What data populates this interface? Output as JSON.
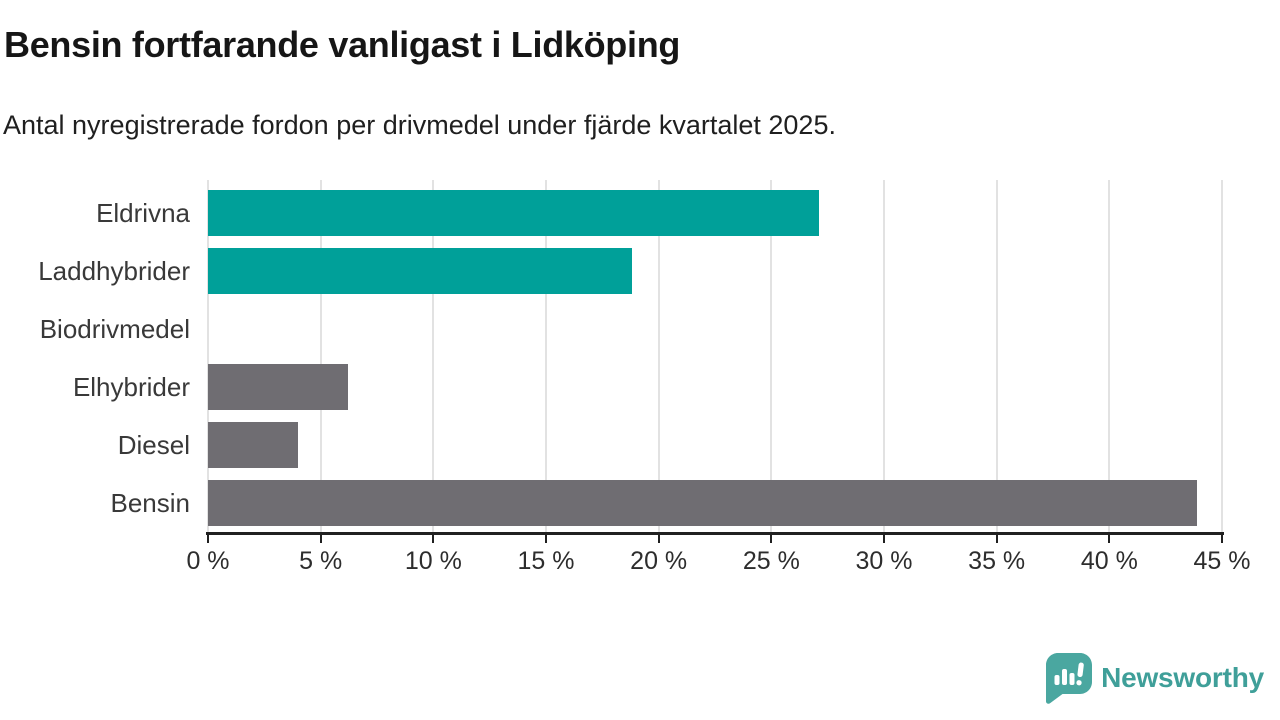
{
  "header": {
    "title": "Bensin fortfarande vanligast i Lidköping",
    "subtitle": "Antal nyregistrerade fordon per drivmedel under fjärde kvartalet 2025."
  },
  "chart_data": {
    "type": "bar",
    "orientation": "horizontal",
    "title": "Bensin fortfarande vanligast i Lidköping",
    "subtitle": "Antal nyregistrerade fordon per drivmedel under fjärde kvartalet 2025.",
    "categories": [
      "Eldrivna",
      "Laddhybrider",
      "Biodrivmedel",
      "Elhybrider",
      "Diesel",
      "Bensin"
    ],
    "values": [
      27.1,
      18.8,
      0,
      6.2,
      4,
      43.9
    ],
    "bar_colors": [
      "#00a099",
      "#00a099",
      "#6f6d72",
      "#6f6d72",
      "#6f6d72",
      "#6f6d72"
    ],
    "accent_teal": "#00a099",
    "bar_gray": "#6f6d72",
    "xlabel": "",
    "ylabel": "",
    "xlim": [
      0,
      45
    ],
    "x_ticks": [
      0,
      5,
      10,
      15,
      20,
      25,
      30,
      35,
      40,
      45
    ],
    "x_tick_labels": [
      "0 %",
      "5 %",
      "10 %",
      "15 %",
      "20 %",
      "25 %",
      "30 %",
      "35 %",
      "40 %",
      "45 %"
    ],
    "grid": true,
    "gridline_color": "#e2e2e2",
    "legend": false
  },
  "footer": {
    "brand": "Newsworthy",
    "brand_color": "#3f9f99",
    "logo_icon": "newsworthy-speech-bubble-bar-chart-icon"
  }
}
